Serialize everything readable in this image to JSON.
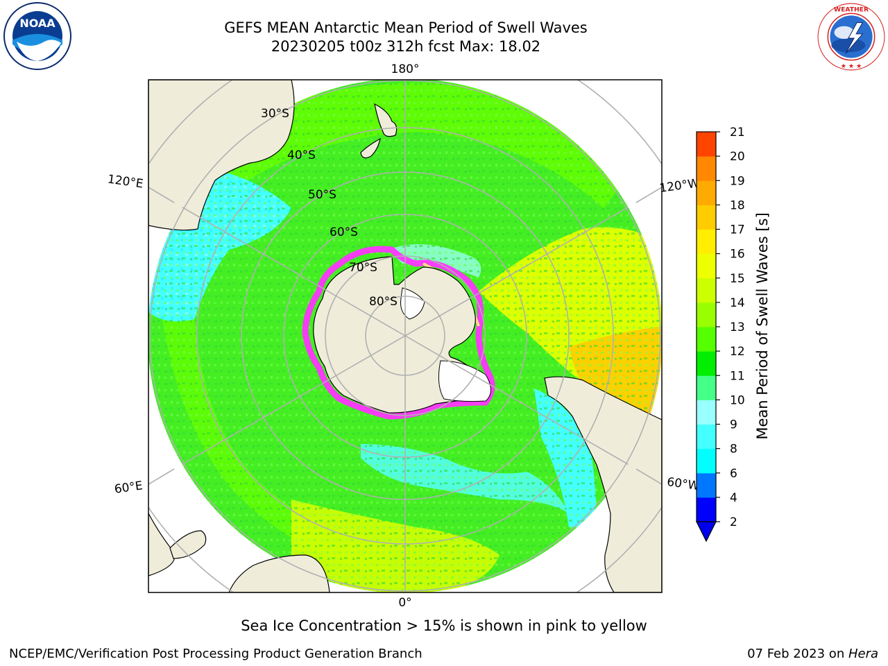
{
  "title": {
    "line1": "GEFS MEAN Antarctic Mean Period of Swell Waves",
    "line2": "20230205 t00z 312h fcst   Max: 18.02"
  },
  "logos": {
    "left": {
      "name": "noaa-logo",
      "text": "NOAA",
      "ring_text": "NATIONAL OCEANIC AND ATMOSPHERIC ADMINISTRATION · U.S. DEPARTMENT OF COMMERCE"
    },
    "right": {
      "name": "nws-logo",
      "ring_text": "NATIONAL WEATHER SERVICE"
    }
  },
  "map": {
    "projection": "south-polar-stereographic",
    "longitude_labels": {
      "top": "180°",
      "bottom": "0°",
      "upper_left": "120°E",
      "lower_left": "60°E",
      "upper_right": "120°W",
      "lower_right": "60°W"
    },
    "latitude_labels": [
      "30°S",
      "40°S",
      "50°S",
      "60°S",
      "70°S",
      "80°S"
    ],
    "colors": {
      "land": "#efedda",
      "ocean_main": "#44ee22",
      "ocean_light": "#66ff00",
      "ocean_cyan": "#44ffff",
      "ocean_pale": "#99ffee",
      "ocean_yellow": "#ddff00",
      "ocean_orange": "#ffcc00",
      "sea_ice": "#ff33ff",
      "graticule": "#b0b0b0"
    }
  },
  "colorbar": {
    "label": "Mean Period of Swell Waves [s]",
    "ticks": [
      "2",
      "4",
      "6",
      "8",
      "9",
      "10",
      "11",
      "12",
      "13",
      "14",
      "15",
      "16",
      "17",
      "18",
      "19",
      "20",
      "21"
    ],
    "colors": [
      "#0000ff",
      "#0077ff",
      "#00ffff",
      "#44ffff",
      "#99ffff",
      "#44ff88",
      "#00ee00",
      "#55ff00",
      "#99ff00",
      "#ccff00",
      "#eeff00",
      "#ffee00",
      "#ffcc00",
      "#ffaa00",
      "#ff8800",
      "#ff4400",
      "#ff0000"
    ],
    "extend_color": "#0000ee"
  },
  "caption": "Sea Ice Concentration > 15% is shown in pink to yellow",
  "footer": {
    "left": "NCEP/EMC/Verification Post Processing Product Generation Branch",
    "right_date": "07 Feb 2023 on ",
    "right_host": "Hera"
  }
}
